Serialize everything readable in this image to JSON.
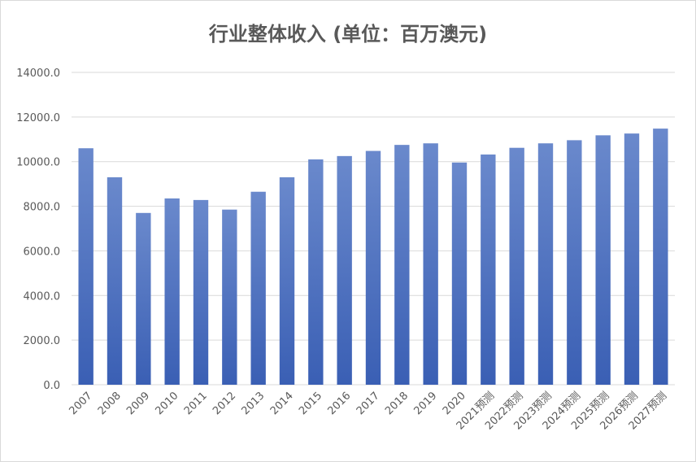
{
  "chart_data": {
    "type": "bar",
    "title": "行业整体收入 (单位：百万澳元)",
    "xlabel": "",
    "ylabel": "",
    "categories": [
      "2007",
      "2008",
      "2009",
      "2010",
      "2011",
      "2012",
      "2013",
      "2014",
      "2015",
      "2016",
      "2017",
      "2018",
      "2019",
      "2020",
      "2021预测",
      "2022预测",
      "2023预测",
      "2024预测",
      "2025预测",
      "2026预测",
      "2027预测"
    ],
    "values": [
      10600,
      9300,
      7700,
      8350,
      8280,
      7850,
      8650,
      9300,
      10100,
      10250,
      10480,
      10750,
      10820,
      9960,
      10320,
      10620,
      10820,
      10960,
      11180,
      11260,
      11480
    ],
    "ylim": [
      0,
      14000
    ],
    "yticks": [
      "0.0",
      "2000.0",
      "4000.0",
      "6000.0",
      "8000.0",
      "10000.0",
      "12000.0",
      "14000.0"
    ],
    "ytick_values": [
      0,
      2000,
      4000,
      6000,
      8000,
      10000,
      12000,
      14000
    ],
    "grid": true,
    "legend": "none",
    "colors": {
      "bar_top": "#6a89cc",
      "bar_bottom": "#3a5fb4",
      "grid": "#d9d9d9",
      "text": "#595959"
    }
  }
}
